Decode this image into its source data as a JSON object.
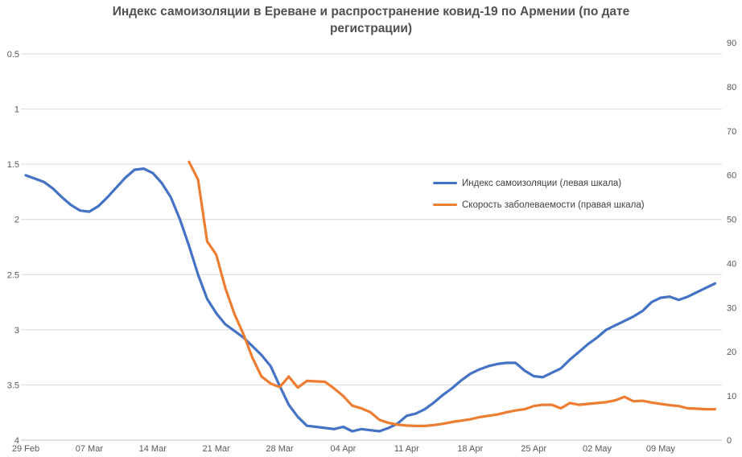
{
  "title": {
    "full": "Индекс самоизоляции в Ереване и распространение ковид-19 по Армении (по дате регистрации)",
    "line1": "Индекс самоизоляции в Ереване и распространение ковид-19 по Армении (по дате",
    "line2": "регистрации)"
  },
  "colors": {
    "series_blue": "#4472C4",
    "series_orange": "#ED7D31",
    "gridline": "#D9D9D9",
    "axis_line": "#C0C0C0",
    "axis_text": "#595959",
    "title_text": "#515151",
    "background": "#FFFFFF"
  },
  "legend": {
    "items": [
      {
        "label": "Индекс самоизоляции (левая шкала)",
        "color": "#4472C4"
      },
      {
        "label": "Скорость заболеваемости (правая шкала)",
        "color": "#ED7D31"
      }
    ]
  },
  "chart_data": {
    "type": "line",
    "title": "Индекс самоизоляции в Ереване и распространение ковид-19 по Армении (по дате регистрации)",
    "x_tick_labels": [
      "29 Feb",
      "07 Mar",
      "14 Mar",
      "21 Mar",
      "28 Mar",
      "04 Apr",
      "11 Apr",
      "18 Apr",
      "25 Apr",
      "02 May",
      "09 May"
    ],
    "x_tick_interval_days": 7,
    "x_total_days": 76,
    "left_axis": {
      "title": "",
      "ticks": [
        0.5,
        1,
        1.5,
        2,
        2.5,
        3,
        3.5,
        4
      ],
      "min": 0.5,
      "max": 4,
      "reversed": true
    },
    "right_axis": {
      "title": "",
      "ticks": [
        90,
        80,
        70,
        60,
        50,
        40,
        30,
        20,
        10,
        0
      ],
      "min": 0,
      "max": 90
    },
    "grid": "horizontal-only",
    "legend_position": "inside-upper-right",
    "series": [
      {
        "name": "Индекс самоизоляции (левая шкала)",
        "axis": "left",
        "color": "#4472C4",
        "start_day": 0,
        "start_date": "29 Feb",
        "values": [
          1.6,
          1.63,
          1.66,
          1.72,
          1.8,
          1.87,
          1.92,
          1.93,
          1.88,
          1.8,
          1.71,
          1.62,
          1.55,
          1.54,
          1.58,
          1.67,
          1.8,
          2.0,
          2.24,
          2.5,
          2.72,
          2.85,
          2.95,
          3.01,
          3.07,
          3.15,
          3.23,
          3.33,
          3.51,
          3.68,
          3.79,
          3.87,
          3.88,
          3.89,
          3.9,
          3.88,
          3.92,
          3.9,
          3.91,
          3.92,
          3.89,
          3.85,
          3.78,
          3.76,
          3.72,
          3.66,
          3.59,
          3.53,
          3.46,
          3.4,
          3.36,
          3.33,
          3.31,
          3.3,
          3.3,
          3.37,
          3.42,
          3.43,
          3.39,
          3.35,
          3.27,
          3.2,
          3.13,
          3.07,
          3.0,
          2.96,
          2.92,
          2.88,
          2.83,
          2.75,
          2.71,
          2.7,
          2.73,
          2.7,
          2.66,
          2.62,
          2.58
        ]
      },
      {
        "name": "Скорость заболеваемости (правая шкала)",
        "axis": "right",
        "color": "#ED7D31",
        "start_day": 18,
        "start_date": "18 Mar",
        "values": [
          63.0,
          59.0,
          45.0,
          42.0,
          34.5,
          28.6,
          24.0,
          18.6,
          14.4,
          12.8,
          12.0,
          14.4,
          11.9,
          13.4,
          13.3,
          13.2,
          11.7,
          10.0,
          7.8,
          7.2,
          6.3,
          4.6,
          3.9,
          3.5,
          3.3,
          3.2,
          3.2,
          3.4,
          3.7,
          4.1,
          4.4,
          4.7,
          5.2,
          5.5,
          5.8,
          6.3,
          6.7,
          7.0,
          7.7,
          8.0,
          8.0,
          7.2,
          8.4,
          8.0,
          8.2,
          8.4,
          8.6,
          9.0,
          9.8,
          8.8,
          8.9,
          8.5,
          8.2,
          7.9,
          7.7,
          7.2,
          7.1,
          7.0,
          7.0
        ]
      }
    ]
  }
}
